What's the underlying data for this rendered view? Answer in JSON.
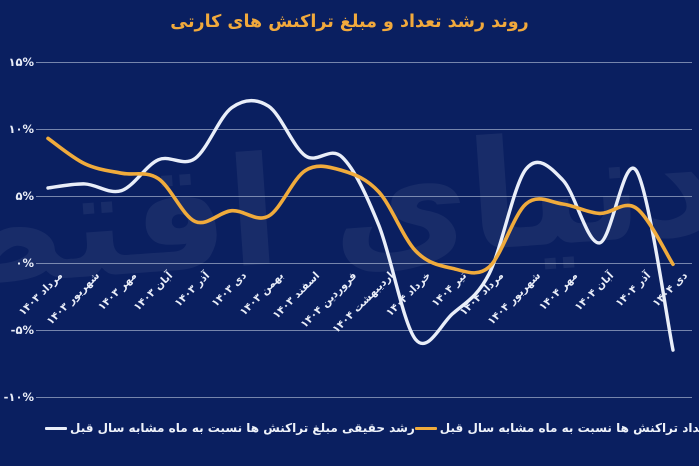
{
  "title": "روند رشد تعداد و مبلغ تراکنش های کارتی",
  "watermark_text": "دنیای اقتصاد",
  "colors": {
    "background": "#0a1f60",
    "title": "#f1a93c",
    "grid": "#becae0",
    "axis_text": "#e9edf8",
    "amount_line": "#e9eef9",
    "count_line": "#f0ab3c"
  },
  "chart_data": {
    "type": "line",
    "title": "روند رشد تعداد و مبلغ تراکنش های کارتی",
    "categories": [
      "مرداد ۱۴۰۳",
      "شهریور ۱۴۰۳",
      "مهر ۱۴۰۳",
      "آبان ۱۴۰۳",
      "آذر ۱۴۰۳",
      "دی ۱۴۰۳",
      "بهمن ۱۴۰۳",
      "اسفند ۱۴۰۳",
      "فروردین ۱۴۰۴",
      "اردیبهشت ۱۴۰۴",
      "خرداد ۱۴۰۴",
      "تیر ۱۴۰۴",
      "مرداد ۱۴۰۴",
      "شهریور ۱۴۰۴",
      "مهر ۱۴۰۴",
      "آبان ۱۴۰۴",
      "آذر ۱۴۰۴",
      "دی ۱۴۰۴"
    ],
    "series": [
      {
        "name": "رشد حقیقی مبلغ تراکنش ها نسبت به ماه مشابه سال قبل",
        "color": "#e9eef9",
        "values": [
          5.6,
          5.9,
          5.4,
          7.7,
          7.8,
          11.6,
          11.7,
          8.0,
          7.9,
          2.8,
          -5.7,
          -3.8,
          -0.8,
          7.0,
          6.2,
          1.5,
          6.9,
          -6.5
        ]
      },
      {
        "name": "رشد تعداد تراکنش ها نسبت به ماه مشابه سال قبل",
        "color": "#f0ab3c",
        "values": [
          9.3,
          7.4,
          6.7,
          6.3,
          3.1,
          3.9,
          3.5,
          6.9,
          6.9,
          5.3,
          0.9,
          -0.4,
          -0.3,
          4.4,
          4.4,
          3.7,
          4.1,
          -0.1
        ]
      }
    ],
    "ytick_labels": [
      "۱۵%",
      "۱۰%",
      "۵%",
      "۰%",
      "-۵%",
      "-۱۰%"
    ],
    "ytick_values": [
      15,
      10,
      5,
      0,
      -5,
      -10
    ],
    "ylim": [
      -10,
      15
    ],
    "xlabel": "",
    "ylabel": "",
    "grid": true,
    "legend_position": "bottom"
  }
}
